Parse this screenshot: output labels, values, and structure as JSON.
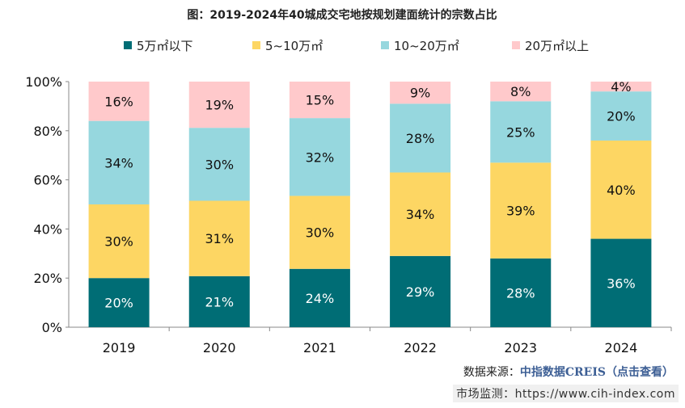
{
  "chart_data": {
    "type": "bar",
    "stacked": true,
    "title": "图：2019-2024年40城成交宅地按规划建面统计的宗数占比",
    "categories": [
      "2019",
      "2020",
      "2021",
      "2022",
      "2023",
      "2024"
    ],
    "series": [
      {
        "name": "5万㎡以下",
        "color": "#006d75",
        "label_color": "#ffffff",
        "values": [
          20,
          21,
          24,
          29,
          28,
          36
        ]
      },
      {
        "name": "5~10万㎡",
        "color": "#fdd663",
        "label_color": "#111111",
        "values": [
          30,
          31,
          30,
          34,
          39,
          40
        ]
      },
      {
        "name": "10~20万㎡",
        "color": "#96d7de",
        "label_color": "#111111",
        "values": [
          34,
          30,
          32,
          28,
          25,
          20
        ]
      },
      {
        "name": "20万㎡以上",
        "color": "#ffc9cb",
        "label_color": "#111111",
        "values": [
          16,
          19,
          15,
          9,
          8,
          4
        ]
      }
    ],
    "yticks": [
      "0%",
      "20%",
      "40%",
      "60%",
      "80%",
      "100%"
    ],
    "ylim": [
      0,
      100
    ],
    "legend_position": "top",
    "grid": false,
    "watermark": "中指数据 CREIS"
  },
  "footer": {
    "source_label": "数据来源：",
    "source_value": "中指数据CREIS（点击查看）",
    "monitor_label": "市场监测：",
    "monitor_url": "https://www.cih-index.com"
  }
}
